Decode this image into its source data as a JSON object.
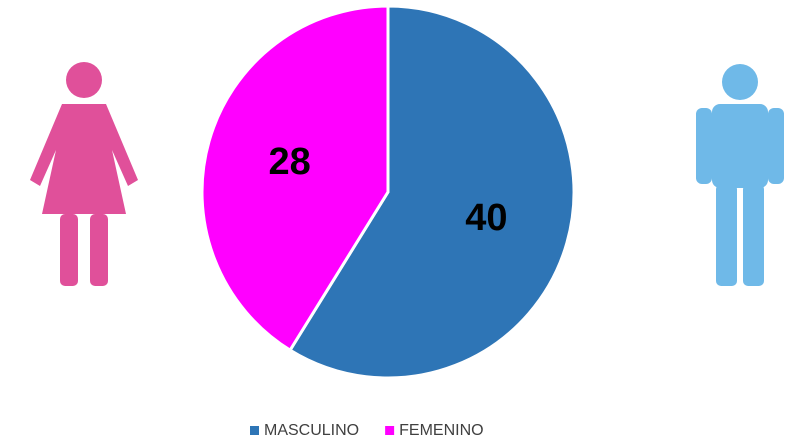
{
  "chart_data": {
    "type": "pie",
    "categories": [
      "MASCULINO",
      "FEMENINO"
    ],
    "values": [
      40,
      28
    ],
    "colors": [
      "#2e75b6",
      "#ff00ff"
    ],
    "legend": "bottom"
  }
}
